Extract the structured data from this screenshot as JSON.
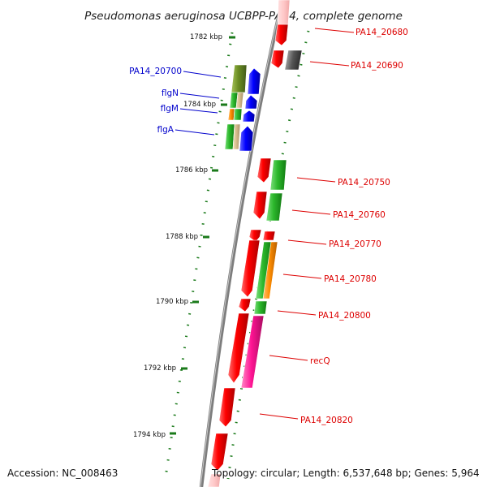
{
  "title": "Pseudomonas aeruginosa UCBPP-PA14, complete genome",
  "footer": {
    "accession": "Accession: NC_008463",
    "topology": "Topology: circular; Length: 6,537,648 bp; Genes: 5,964"
  },
  "colors": {
    "backbone": "#7f7f7f",
    "tick": "#1a7a1a",
    "left_label": "#0000cc",
    "right_label": "#dd0000",
    "gene_red": "#ff0000",
    "gene_green": "#33bb33",
    "gene_olive": "#6b8e23",
    "gene_orange": "#ff8c00",
    "gene_pink": "#ff1493",
    "gene_gray": "#555555",
    "gene_blue": "#0000ff"
  },
  "kbp_labels": [
    "1782 kbp",
    "1784 kbp",
    "1786 kbp",
    "1788 kbp",
    "1790 kbp",
    "1792 kbp",
    "1794 kbp"
  ],
  "left_gene_labels": [
    "PA14_20700",
    "flgN",
    "flgM",
    "flgA"
  ],
  "right_gene_labels": [
    "PA14_20680",
    "PA14_20690",
    "PA14_20750",
    "PA14_20760",
    "PA14_20770",
    "PA14_20780",
    "PA14_20800",
    "recQ",
    "PA14_20820"
  ]
}
